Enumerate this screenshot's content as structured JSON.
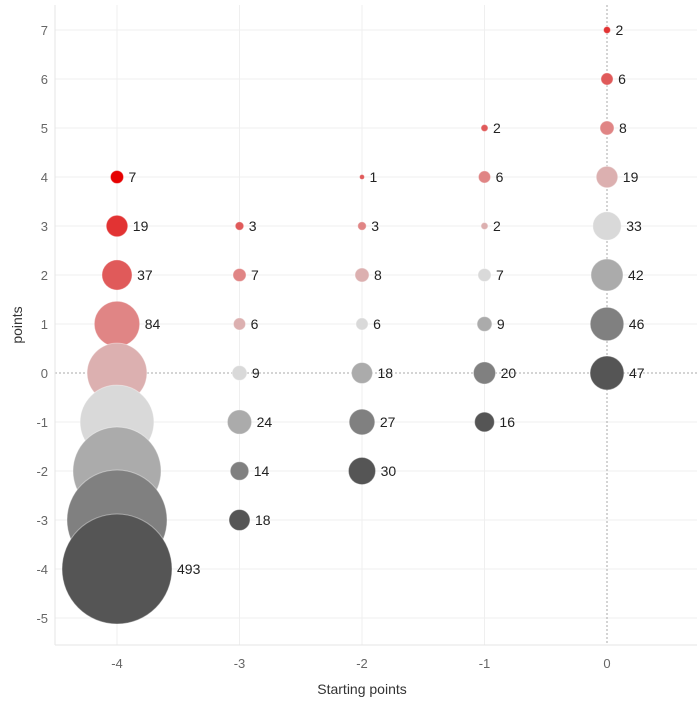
{
  "chart_data": {
    "type": "scatter",
    "subtype": "bubble",
    "xlabel": "Starting points",
    "ylabel": "points",
    "xlim": [
      -4.5,
      0.7
    ],
    "ylim": [
      -5.55,
      7.5
    ],
    "xticks": [
      "-4",
      "-3",
      "-2",
      "-1",
      "0"
    ],
    "yticks": [
      "7",
      "6",
      "5",
      "4",
      "3",
      "2",
      "1",
      "0",
      "-1",
      "-2",
      "-3",
      "-4",
      "-5"
    ],
    "grid": true,
    "color_by": "points minus starting points",
    "colors": {
      "8": "#e60000",
      "7": "#e23333",
      "6": "#e05a5a",
      "5": "#e08585",
      "4": "#dcb0b0",
      "3": "#d9d9d9",
      "2": "#ababab",
      "1": "#808080",
      "0": "#555555"
    },
    "points": [
      {
        "x": -4,
        "y": 4,
        "value": 7,
        "label": "7"
      },
      {
        "x": -4,
        "y": 3,
        "value": 19,
        "label": "19"
      },
      {
        "x": -4,
        "y": 2,
        "value": 37,
        "label": "37"
      },
      {
        "x": -4,
        "y": 1,
        "value": 84,
        "label": "84"
      },
      {
        "x": -4,
        "y": 0,
        "value": 146,
        "label": null
      },
      {
        "x": -4,
        "y": -1,
        "value": 222,
        "label": null
      },
      {
        "x": -4,
        "y": -2,
        "value": 316,
        "label": null
      },
      {
        "x": -4,
        "y": -3,
        "value": 408,
        "label": null
      },
      {
        "x": -4,
        "y": -4,
        "value": 493,
        "label": "493"
      },
      {
        "x": -3,
        "y": 3,
        "value": 3,
        "label": "3"
      },
      {
        "x": -3,
        "y": 2,
        "value": 7,
        "label": "7"
      },
      {
        "x": -3,
        "y": 1,
        "value": 6,
        "label": "6"
      },
      {
        "x": -3,
        "y": 0,
        "value": 9,
        "label": "9"
      },
      {
        "x": -3,
        "y": -1,
        "value": 24,
        "label": "24"
      },
      {
        "x": -3,
        "y": -2,
        "value": 14,
        "label": "14"
      },
      {
        "x": -3,
        "y": -3,
        "value": 18,
        "label": "18"
      },
      {
        "x": -2,
        "y": 4,
        "value": 1,
        "label": "1"
      },
      {
        "x": -2,
        "y": 3,
        "value": 3,
        "label": "3"
      },
      {
        "x": -2,
        "y": 2,
        "value": 8,
        "label": "8"
      },
      {
        "x": -2,
        "y": 1,
        "value": 6,
        "label": "6"
      },
      {
        "x": -2,
        "y": 0,
        "value": 18,
        "label": "18"
      },
      {
        "x": -2,
        "y": -1,
        "value": 27,
        "label": "27"
      },
      {
        "x": -2,
        "y": -2,
        "value": 30,
        "label": "30"
      },
      {
        "x": -1,
        "y": 5,
        "value": 2,
        "label": "2"
      },
      {
        "x": -1,
        "y": 4,
        "value": 6,
        "label": "6"
      },
      {
        "x": -1,
        "y": 3,
        "value": 2,
        "label": "2"
      },
      {
        "x": -1,
        "y": 2,
        "value": 7,
        "label": "7"
      },
      {
        "x": -1,
        "y": 1,
        "value": 9,
        "label": "9"
      },
      {
        "x": -1,
        "y": 0,
        "value": 20,
        "label": "20"
      },
      {
        "x": -1,
        "y": -1,
        "value": 16,
        "label": "16"
      },
      {
        "x": 0,
        "y": 7,
        "value": 2,
        "label": "2"
      },
      {
        "x": 0,
        "y": 6,
        "value": 6,
        "label": "6"
      },
      {
        "x": 0,
        "y": 5,
        "value": 8,
        "label": "8"
      },
      {
        "x": 0,
        "y": 4,
        "value": 19,
        "label": "19"
      },
      {
        "x": 0,
        "y": 3,
        "value": 33,
        "label": "33"
      },
      {
        "x": 0,
        "y": 2,
        "value": 42,
        "label": "42"
      },
      {
        "x": 0,
        "y": 1,
        "value": 46,
        "label": "46"
      },
      {
        "x": 0,
        "y": 0,
        "value": 47,
        "label": "47"
      }
    ]
  }
}
